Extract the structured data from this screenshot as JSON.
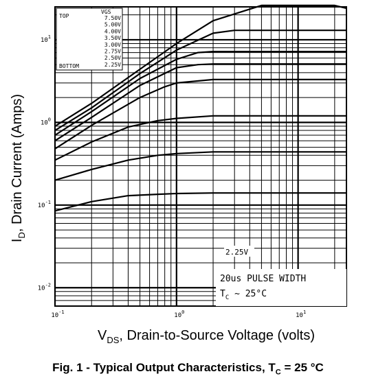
{
  "chart_data": {
    "type": "line",
    "x_scale": "log",
    "y_scale": "log",
    "xlim": [
      0.1,
      25
    ],
    "ylim": [
      0.006,
      25
    ],
    "x_ticks": [
      {
        "value": 0.1,
        "base": "10",
        "exp": "-1"
      },
      {
        "value": 1,
        "base": "10",
        "exp": "0"
      },
      {
        "value": 10,
        "base": "10",
        "exp": "1"
      }
    ],
    "y_ticks": [
      {
        "value": 0.01,
        "base": "10",
        "exp": "-2"
      },
      {
        "value": 0.1,
        "base": "10",
        "exp": "-1"
      },
      {
        "value": 1,
        "base": "10",
        "exp": "0"
      },
      {
        "value": 10,
        "base": "10",
        "exp": "1"
      }
    ],
    "grid": true,
    "legend": {
      "position": "top-left",
      "header": "VGS",
      "top_label": "TOP",
      "bottom_label": "BOTTOM",
      "entries": [
        "7.50V",
        "5.00V",
        "4.00V",
        "3.50V",
        "3.00V",
        "2.75V",
        "2.50V",
        "2.25V"
      ]
    },
    "series": [
      {
        "name": "7.50V",
        "x": [
          0.1,
          0.2,
          0.5,
          1,
          2,
          5,
          10,
          20,
          25
        ],
        "y": [
          0.9,
          1.7,
          4.4,
          9,
          17,
          26,
          26,
          26,
          24
        ]
      },
      {
        "name": "5.00V",
        "x": [
          0.1,
          0.2,
          0.5,
          1,
          2,
          3,
          5,
          10,
          25
        ],
        "y": [
          0.8,
          1.5,
          3.9,
          7.5,
          12,
          13,
          13,
          13,
          13
        ]
      },
      {
        "name": "4.00V",
        "x": [
          0.1,
          0.2,
          0.5,
          1,
          1.5,
          2,
          5,
          10,
          25
        ],
        "y": [
          0.7,
          1.35,
          3.4,
          5.8,
          7,
          7.2,
          7.2,
          7.2,
          7.2
        ]
      },
      {
        "name": "3.50V",
        "x": [
          0.1,
          0.2,
          0.5,
          1,
          1.5,
          2,
          5,
          10,
          25
        ],
        "y": [
          0.6,
          1.15,
          2.8,
          4.6,
          5,
          5.1,
          5.1,
          5.1,
          5.1
        ]
      },
      {
        "name": "3.00V",
        "x": [
          0.1,
          0.2,
          0.5,
          0.8,
          1,
          2,
          5,
          10,
          25
        ],
        "y": [
          0.48,
          0.92,
          2,
          2.7,
          3.0,
          3.3,
          3.3,
          3.3,
          3.3
        ]
      },
      {
        "name": "2.75V",
        "x": [
          0.1,
          0.2,
          0.4,
          0.7,
          1,
          2,
          5,
          10,
          25
        ],
        "y": [
          0.35,
          0.58,
          0.88,
          1.05,
          1.12,
          1.2,
          1.2,
          1.2,
          1.2
        ]
      },
      {
        "name": "2.50V",
        "x": [
          0.1,
          0.2,
          0.4,
          0.7,
          1,
          2,
          5,
          10,
          25
        ],
        "y": [
          0.2,
          0.27,
          0.35,
          0.4,
          0.42,
          0.44,
          0.44,
          0.44,
          0.44
        ]
      },
      {
        "name": "2.25V",
        "x": [
          0.1,
          0.2,
          0.4,
          0.7,
          1,
          2,
          5,
          10,
          25
        ],
        "y": [
          0.085,
          0.11,
          0.13,
          0.135,
          0.138,
          0.14,
          0.14,
          0.14,
          0.14
        ]
      }
    ],
    "annotations": {
      "curve_label": "2.25V",
      "pulse": "20us PULSE WIDTH",
      "temp_prefix": "T",
      "temp_sub": "C",
      "temp_suffix": " ~ 25°C"
    },
    "ylabel": {
      "prefix": "I",
      "sub": "D",
      "suffix": ", Drain Current (Amps)"
    },
    "xlabel": {
      "prefix": "V",
      "sub": "DS",
      "suffix": ", Drain-to-Source Voltage (volts)"
    }
  },
  "caption": {
    "prefix": "Fig. 1 - Typical Output Characteristics, T",
    "sub": "C",
    "suffix": " = 25 °C"
  }
}
